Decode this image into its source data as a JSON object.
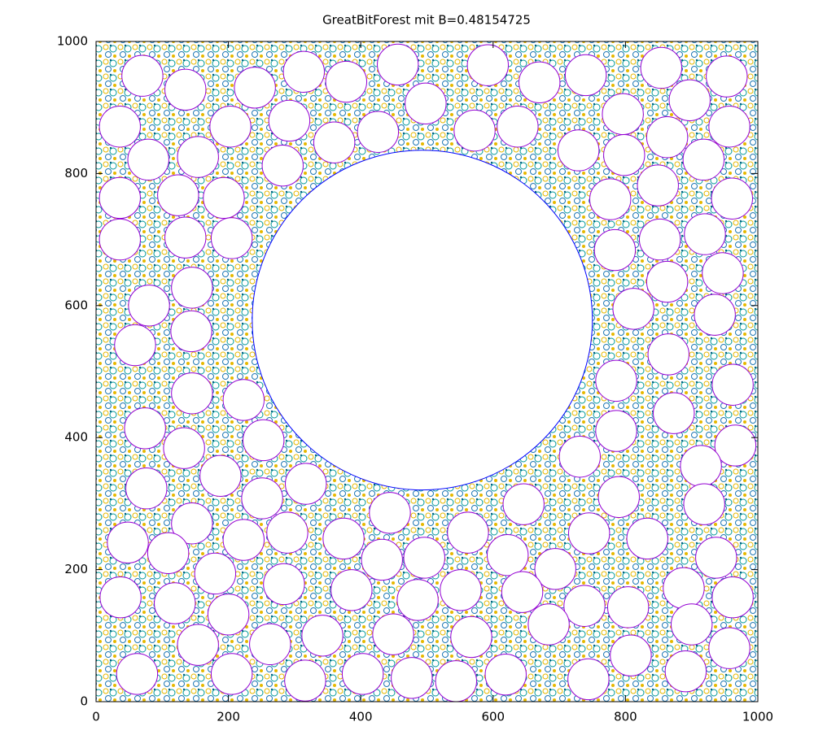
{
  "chart_data": {
    "type": "scatter",
    "title": "GreatBitForest mit B=0.48154725",
    "xlim": [
      0,
      1000
    ],
    "ylim": [
      0,
      1000
    ],
    "xticks": [
      0,
      200,
      400,
      600,
      800,
      1000
    ],
    "yticks": [
      0,
      200,
      400,
      600,
      800,
      1000
    ],
    "series": [
      {
        "color": "#0000ff",
        "r": 257,
        "x": [
          493
        ],
        "y": [
          578
        ]
      },
      {
        "color": "#9400d3",
        "r": 31,
        "x": [
          70,
          135,
          240,
          314,
          378,
          456,
          498,
          592,
          670,
          740,
          854,
          953,
          36,
          203,
          292,
          360,
          426,
          572,
          637,
          796,
          897,
          957,
          79,
          154,
          282,
          729,
          798,
          863,
          918,
          36,
          124,
          193,
          777,
          849,
          961,
          36,
          135,
          205,
          784,
          852,
          920,
          145,
          80,
          947,
          863,
          812,
          59,
          144,
          935,
          865,
          786,
          145,
          223,
          74,
          133,
          962,
          873,
          966,
          253,
          188,
          76,
          786,
          731,
          914,
          317,
          251,
          444,
          646,
          919,
          790,
          145,
          223,
          48,
          109,
          289,
          374,
          432,
          496,
          562,
          622,
          694,
          745,
          833,
          937,
          180,
          37,
          119,
          200,
          284,
          386,
          486,
          551,
          644,
          738,
          804,
          888,
          962,
          62,
          154,
          263,
          342,
          449,
          567,
          684,
          900,
          205,
          316,
          403,
          477,
          544,
          619,
          744,
          808,
          891,
          957
        ],
        "y": [
          948,
          927,
          930,
          954,
          939,
          965,
          906,
          964,
          938,
          949,
          960,
          947,
          871,
          871,
          880,
          847,
          863,
          865,
          871,
          890,
          911,
          871,
          821,
          825,
          812,
          835,
          828,
          855,
          821,
          763,
          767,
          763,
          761,
          782,
          762,
          700,
          703,
          702,
          684,
          700,
          708,
          627,
          600,
          649,
          636,
          595,
          540,
          561,
          586,
          526,
          486,
          467,
          457,
          414,
          384,
          480,
          437,
          388,
          396,
          342,
          323,
          410,
          371,
          357,
          330,
          308,
          286,
          299,
          299,
          310,
          270,
          245,
          241,
          225,
          256,
          247,
          215,
          218,
          256,
          222,
          201,
          255,
          247,
          218,
          194,
          158,
          149,
          132,
          178,
          169,
          154,
          169,
          166,
          145,
          143,
          172,
          158,
          42,
          86,
          87,
          100,
          102,
          98,
          117,
          117,
          42,
          32,
          42,
          36,
          31,
          41,
          34,
          70,
          46,
          81
        ]
      }
    ]
  }
}
